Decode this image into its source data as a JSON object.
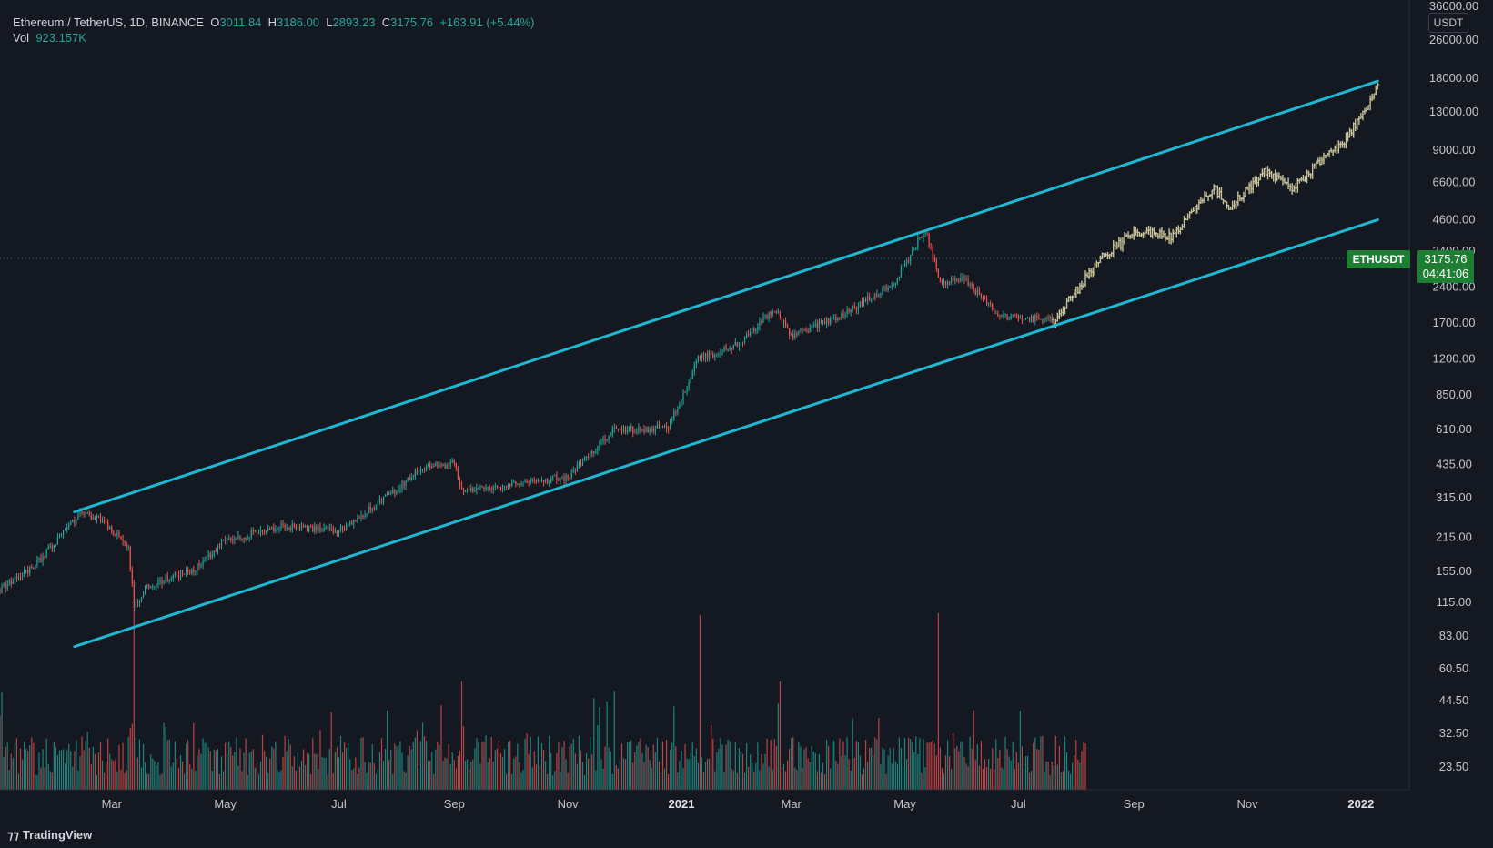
{
  "legend": {
    "symbol": "Ethereum / TetherUS, 1D, BINANCE",
    "open_label": "O",
    "open": "3011.84",
    "high_label": "H",
    "high": "3186.00",
    "low_label": "L",
    "low": "2893.23",
    "close_label": "C",
    "close": "3175.76",
    "change": "+163.91 (+5.44%)",
    "vol_label": "Vol",
    "vol": "923.157K"
  },
  "price_scale": {
    "unit": "USDT",
    "labels": [
      "36000.00",
      "26000.00",
      "18000.00",
      "13000.00",
      "9000.00",
      "6600.00",
      "4600.00",
      "3400.00",
      "2400.00",
      "1700.00",
      "1200.00",
      "850.00",
      "610.00",
      "435.00",
      "315.00",
      "215.00",
      "155.00",
      "115.00",
      "83.00",
      "60.50",
      "44.50",
      "32.50",
      "23.50"
    ]
  },
  "current_price": {
    "symbol": "ETHUSDT",
    "price": "3175.76",
    "countdown": "04:41:06"
  },
  "time_scale": {
    "labels": [
      "Mar",
      "May",
      "Jul",
      "Sep",
      "Nov",
      "2021",
      "Mar",
      "May",
      "Jul",
      "Sep",
      "Nov",
      "2022"
    ]
  },
  "brand": {
    "name": "TradingView"
  },
  "colors": {
    "background": "#141821",
    "up": "#26a69a",
    "down": "#ef5350",
    "projection": "#c8c39a",
    "channel": "#1fb8d3",
    "tag": "#1e7e34"
  },
  "chart_data": {
    "type": "candlestick",
    "title": "Ethereum / TetherUS, 1D, BINANCE",
    "y_scale": "log",
    "ylim": [
      20,
      38000
    ],
    "x_range": [
      "2020-01-01",
      "2022-01-25"
    ],
    "series": [
      {
        "name": "ETHUSDT",
        "style": "candles",
        "anchors": [
          [
            "2020-01-01",
            130
          ],
          [
            "2020-01-20",
            165
          ],
          [
            "2020-02-14",
            275
          ],
          [
            "2020-02-25",
            250
          ],
          [
            "2020-03-10",
            200
          ],
          [
            "2020-03-13",
            110
          ],
          [
            "2020-03-20",
            135
          ],
          [
            "2020-04-15",
            160
          ],
          [
            "2020-05-01",
            210
          ],
          [
            "2020-06-01",
            240
          ],
          [
            "2020-07-01",
            230
          ],
          [
            "2020-07-25",
            310
          ],
          [
            "2020-08-15",
            420
          ],
          [
            "2020-09-01",
            440
          ],
          [
            "2020-09-05",
            340
          ],
          [
            "2020-10-01",
            355
          ],
          [
            "2020-11-01",
            385
          ],
          [
            "2020-11-25",
            600
          ],
          [
            "2020-12-25",
            620
          ],
          [
            "2021-01-10",
            1200
          ],
          [
            "2021-02-01",
            1400
          ],
          [
            "2021-02-20",
            1950
          ],
          [
            "2021-03-01",
            1500
          ],
          [
            "2021-04-01",
            1900
          ],
          [
            "2021-04-25",
            2500
          ],
          [
            "2021-05-12",
            4200
          ],
          [
            "2021-05-20",
            2500
          ],
          [
            "2021-06-01",
            2600
          ],
          [
            "2021-06-22",
            1800
          ],
          [
            "2021-07-20",
            1750
          ]
        ]
      },
      {
        "name": "Projection",
        "style": "bars",
        "anchors": [
          [
            "2021-07-20",
            1750
          ],
          [
            "2021-08-15",
            3200
          ],
          [
            "2021-09-02",
            4100
          ],
          [
            "2021-09-21",
            3900
          ],
          [
            "2021-10-14",
            6300
          ],
          [
            "2021-10-22",
            5100
          ],
          [
            "2021-11-10",
            7300
          ],
          [
            "2021-11-25",
            6300
          ],
          [
            "2021-12-24",
            10000
          ],
          [
            "2022-01-10",
            16500
          ]
        ]
      },
      {
        "name": "Volume",
        "style": "histogram",
        "range": [
          "2020-01-01",
          "2021-08-06"
        ],
        "spikes": [
          [
            "2020-03-13",
            1.0
          ],
          [
            "2021-01-11",
            0.97
          ],
          [
            "2021-05-19",
            0.98
          ],
          [
            "2020-09-05",
            0.6
          ],
          [
            "2021-02-23",
            0.6
          ],
          [
            "2020-11-26",
            0.55
          ]
        ]
      }
    ],
    "channel_lines": [
      {
        "name": "upper",
        "points": [
          [
            "2020-02-10",
            275
          ],
          [
            "2022-01-10",
            17500
          ]
        ]
      },
      {
        "name": "lower",
        "points": [
          [
            "2020-02-10",
            75
          ],
          [
            "2022-01-10",
            4600
          ]
        ]
      }
    ]
  }
}
